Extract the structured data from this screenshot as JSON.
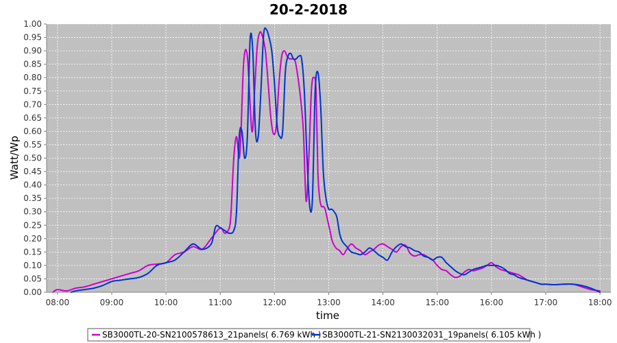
{
  "chart_data": {
    "type": "line",
    "title": "20-2-2018",
    "xlabel": "time",
    "ylabel": "Watt/Wp",
    "xlim": [
      "07:48",
      "18:12"
    ],
    "ylim": [
      0,
      1.0
    ],
    "x_ticks": [
      "08:00",
      "09:00",
      "10:00",
      "11:00",
      "12:00",
      "13:00",
      "14:00",
      "15:00",
      "16:00",
      "17:00",
      "18:00"
    ],
    "y_ticks": [
      "0.00",
      "0.05",
      "0.10",
      "0.15",
      "0.20",
      "0.25",
      "0.30",
      "0.35",
      "0.40",
      "0.45",
      "0.50",
      "0.55",
      "0.60",
      "0.65",
      "0.70",
      "0.75",
      "0.80",
      "0.85",
      "0.90",
      "0.95",
      "1.00"
    ],
    "grid": true,
    "legend_position": "bottom",
    "series": [
      {
        "name": "SB3000TL-20-SN2100578613_21panels( 6.769 kWh )",
        "color": "#cc00cc",
        "x": [
          "07:55",
          "08:00",
          "08:10",
          "08:20",
          "08:30",
          "08:40",
          "08:50",
          "09:00",
          "09:10",
          "09:20",
          "09:30",
          "09:40",
          "09:50",
          "10:00",
          "10:10",
          "10:20",
          "10:30",
          "10:40",
          "10:50",
          "11:00",
          "11:05",
          "11:10",
          "11:12",
          "11:15",
          "11:18",
          "11:21",
          "11:23",
          "11:26",
          "11:30",
          "11:35",
          "11:38",
          "11:41",
          "11:44",
          "11:47",
          "11:50",
          "11:53",
          "11:56",
          "11:59",
          "12:02",
          "12:05",
          "12:08",
          "12:11",
          "12:14",
          "12:17",
          "12:20",
          "12:23",
          "12:26",
          "12:29",
          "12:32",
          "12:35",
          "12:38",
          "12:41",
          "12:44",
          "12:46",
          "12:48",
          "12:50",
          "12:52",
          "12:54",
          "12:56",
          "12:58",
          "13:00",
          "13:02",
          "13:04",
          "13:08",
          "13:12",
          "13:16",
          "13:20",
          "13:25",
          "13:30",
          "13:35",
          "13:40",
          "13:45",
          "13:50",
          "13:55",
          "14:00",
          "14:05",
          "14:10",
          "14:15",
          "14:20",
          "14:25",
          "14:30",
          "14:35",
          "14:40",
          "14:45",
          "14:50",
          "14:55",
          "15:00",
          "15:05",
          "15:10",
          "15:15",
          "15:20",
          "15:25",
          "15:30",
          "15:35",
          "15:40",
          "15:45",
          "15:50",
          "15:55",
          "16:00",
          "16:05",
          "16:10",
          "16:15",
          "16:20",
          "16:25",
          "16:30",
          "16:35",
          "16:40",
          "16:45",
          "16:50",
          "16:55",
          "17:00",
          "17:10",
          "17:20",
          "17:30",
          "17:40",
          "17:50",
          "18:00"
        ],
        "values": [
          0.0,
          0.01,
          0.005,
          0.015,
          0.02,
          0.03,
          0.04,
          0.05,
          0.06,
          0.07,
          0.08,
          0.1,
          0.105,
          0.11,
          0.14,
          0.15,
          0.17,
          0.16,
          0.2,
          0.24,
          0.22,
          0.24,
          0.3,
          0.5,
          0.58,
          0.5,
          0.6,
          0.86,
          0.88,
          0.6,
          0.75,
          0.92,
          0.97,
          0.95,
          0.9,
          0.78,
          0.65,
          0.59,
          0.62,
          0.78,
          0.88,
          0.9,
          0.88,
          0.87,
          0.87,
          0.86,
          0.8,
          0.72,
          0.6,
          0.34,
          0.5,
          0.76,
          0.8,
          0.75,
          0.45,
          0.35,
          0.32,
          0.32,
          0.31,
          0.28,
          0.25,
          0.22,
          0.19,
          0.165,
          0.155,
          0.14,
          0.16,
          0.18,
          0.165,
          0.155,
          0.14,
          0.15,
          0.16,
          0.175,
          0.18,
          0.17,
          0.16,
          0.15,
          0.17,
          0.175,
          0.145,
          0.135,
          0.14,
          0.14,
          0.13,
          0.12,
          0.1,
          0.085,
          0.08,
          0.065,
          0.055,
          0.06,
          0.075,
          0.085,
          0.08,
          0.085,
          0.09,
          0.1,
          0.11,
          0.095,
          0.085,
          0.08,
          0.075,
          0.07,
          0.065,
          0.055,
          0.045,
          0.04,
          0.035,
          0.03,
          0.03,
          0.028,
          0.03,
          0.03,
          0.02,
          0.01,
          0.005
        ]
      },
      {
        "name": "SB3000TL-21-SN2130032031_19panels( 6.105 kWh )",
        "color": "#0033cc",
        "x": [
          "08:15",
          "08:20",
          "08:30",
          "08:40",
          "08:50",
          "09:00",
          "09:10",
          "09:20",
          "09:30",
          "09:40",
          "09:50",
          "10:00",
          "10:10",
          "10:20",
          "10:30",
          "10:40",
          "10:50",
          "10:55",
          "11:00",
          "11:05",
          "11:10",
          "11:15",
          "11:18",
          "11:21",
          "11:24",
          "11:27",
          "11:30",
          "11:33",
          "11:36",
          "11:39",
          "11:42",
          "11:45",
          "11:48",
          "11:51",
          "11:54",
          "11:57",
          "12:00",
          "12:03",
          "12:06",
          "12:09",
          "12:12",
          "12:15",
          "12:18",
          "12:21",
          "12:24",
          "12:27",
          "12:30",
          "12:33",
          "12:36",
          "12:39",
          "12:42",
          "12:45",
          "12:48",
          "12:51",
          "12:54",
          "12:57",
          "13:00",
          "13:03",
          "13:06",
          "13:09",
          "13:12",
          "13:15",
          "13:20",
          "13:25",
          "13:30",
          "13:35",
          "13:40",
          "13:45",
          "13:50",
          "13:55",
          "14:00",
          "14:05",
          "14:10",
          "14:15",
          "14:20",
          "14:25",
          "14:30",
          "14:35",
          "14:40",
          "14:45",
          "14:50",
          "14:55",
          "15:00",
          "15:05",
          "15:10",
          "15:15",
          "15:20",
          "15:25",
          "15:30",
          "15:35",
          "15:40",
          "15:45",
          "15:50",
          "15:55",
          "16:00",
          "16:05",
          "16:10",
          "16:15",
          "16:20",
          "16:25",
          "16:30",
          "16:35",
          "16:40",
          "16:45",
          "16:50",
          "16:55",
          "17:00",
          "17:10",
          "17:20",
          "17:30",
          "17:40",
          "17:50",
          "18:00"
        ],
        "values": [
          0.0,
          0.005,
          0.01,
          0.015,
          0.025,
          0.04,
          0.045,
          0.05,
          0.055,
          0.07,
          0.1,
          0.11,
          0.12,
          0.15,
          0.18,
          0.16,
          0.18,
          0.245,
          0.24,
          0.23,
          0.22,
          0.23,
          0.3,
          0.58,
          0.6,
          0.5,
          0.58,
          0.94,
          0.9,
          0.6,
          0.58,
          0.75,
          0.96,
          0.98,
          0.95,
          0.9,
          0.78,
          0.62,
          0.58,
          0.6,
          0.82,
          0.88,
          0.89,
          0.87,
          0.87,
          0.88,
          0.87,
          0.75,
          0.5,
          0.32,
          0.35,
          0.75,
          0.82,
          0.7,
          0.45,
          0.35,
          0.31,
          0.31,
          0.3,
          0.28,
          0.22,
          0.19,
          0.17,
          0.15,
          0.145,
          0.14,
          0.15,
          0.165,
          0.155,
          0.14,
          0.13,
          0.12,
          0.15,
          0.17,
          0.18,
          0.17,
          0.165,
          0.155,
          0.15,
          0.135,
          0.13,
          0.12,
          0.13,
          0.13,
          0.11,
          0.095,
          0.08,
          0.07,
          0.065,
          0.075,
          0.085,
          0.09,
          0.095,
          0.1,
          0.1,
          0.1,
          0.095,
          0.085,
          0.07,
          0.065,
          0.055,
          0.05,
          0.045,
          0.04,
          0.035,
          0.03,
          0.03,
          0.028,
          0.03,
          0.03,
          0.025,
          0.015,
          0.0
        ]
      }
    ]
  }
}
